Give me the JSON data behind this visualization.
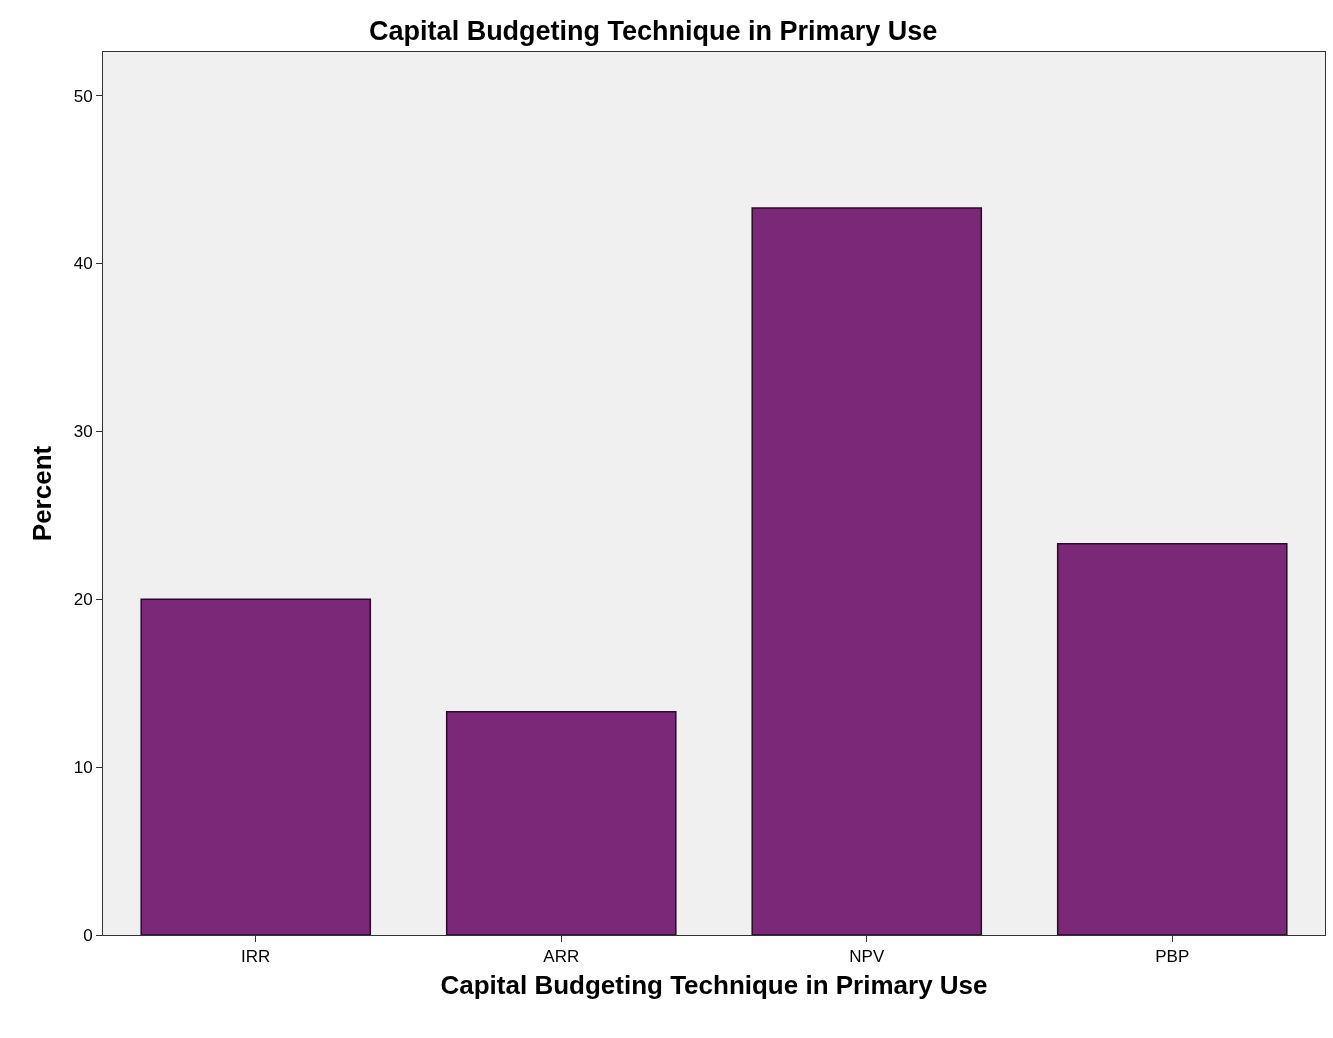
{
  "chart_data": {
    "type": "bar",
    "title": "Capital Budgeting Technique in Primary Use",
    "xlabel": "Capital Budgeting Technique in Primary Use",
    "ylabel": "Percent",
    "categories": [
      "IRR",
      "ARR",
      "NPV",
      "PBP"
    ],
    "values": [
      20.0,
      13.3,
      43.3,
      23.3
    ],
    "color": "#7b2878",
    "ylim": [
      0,
      52.6
    ],
    "yticks": [
      0,
      10,
      20,
      30,
      40,
      50
    ],
    "grid": false
  }
}
